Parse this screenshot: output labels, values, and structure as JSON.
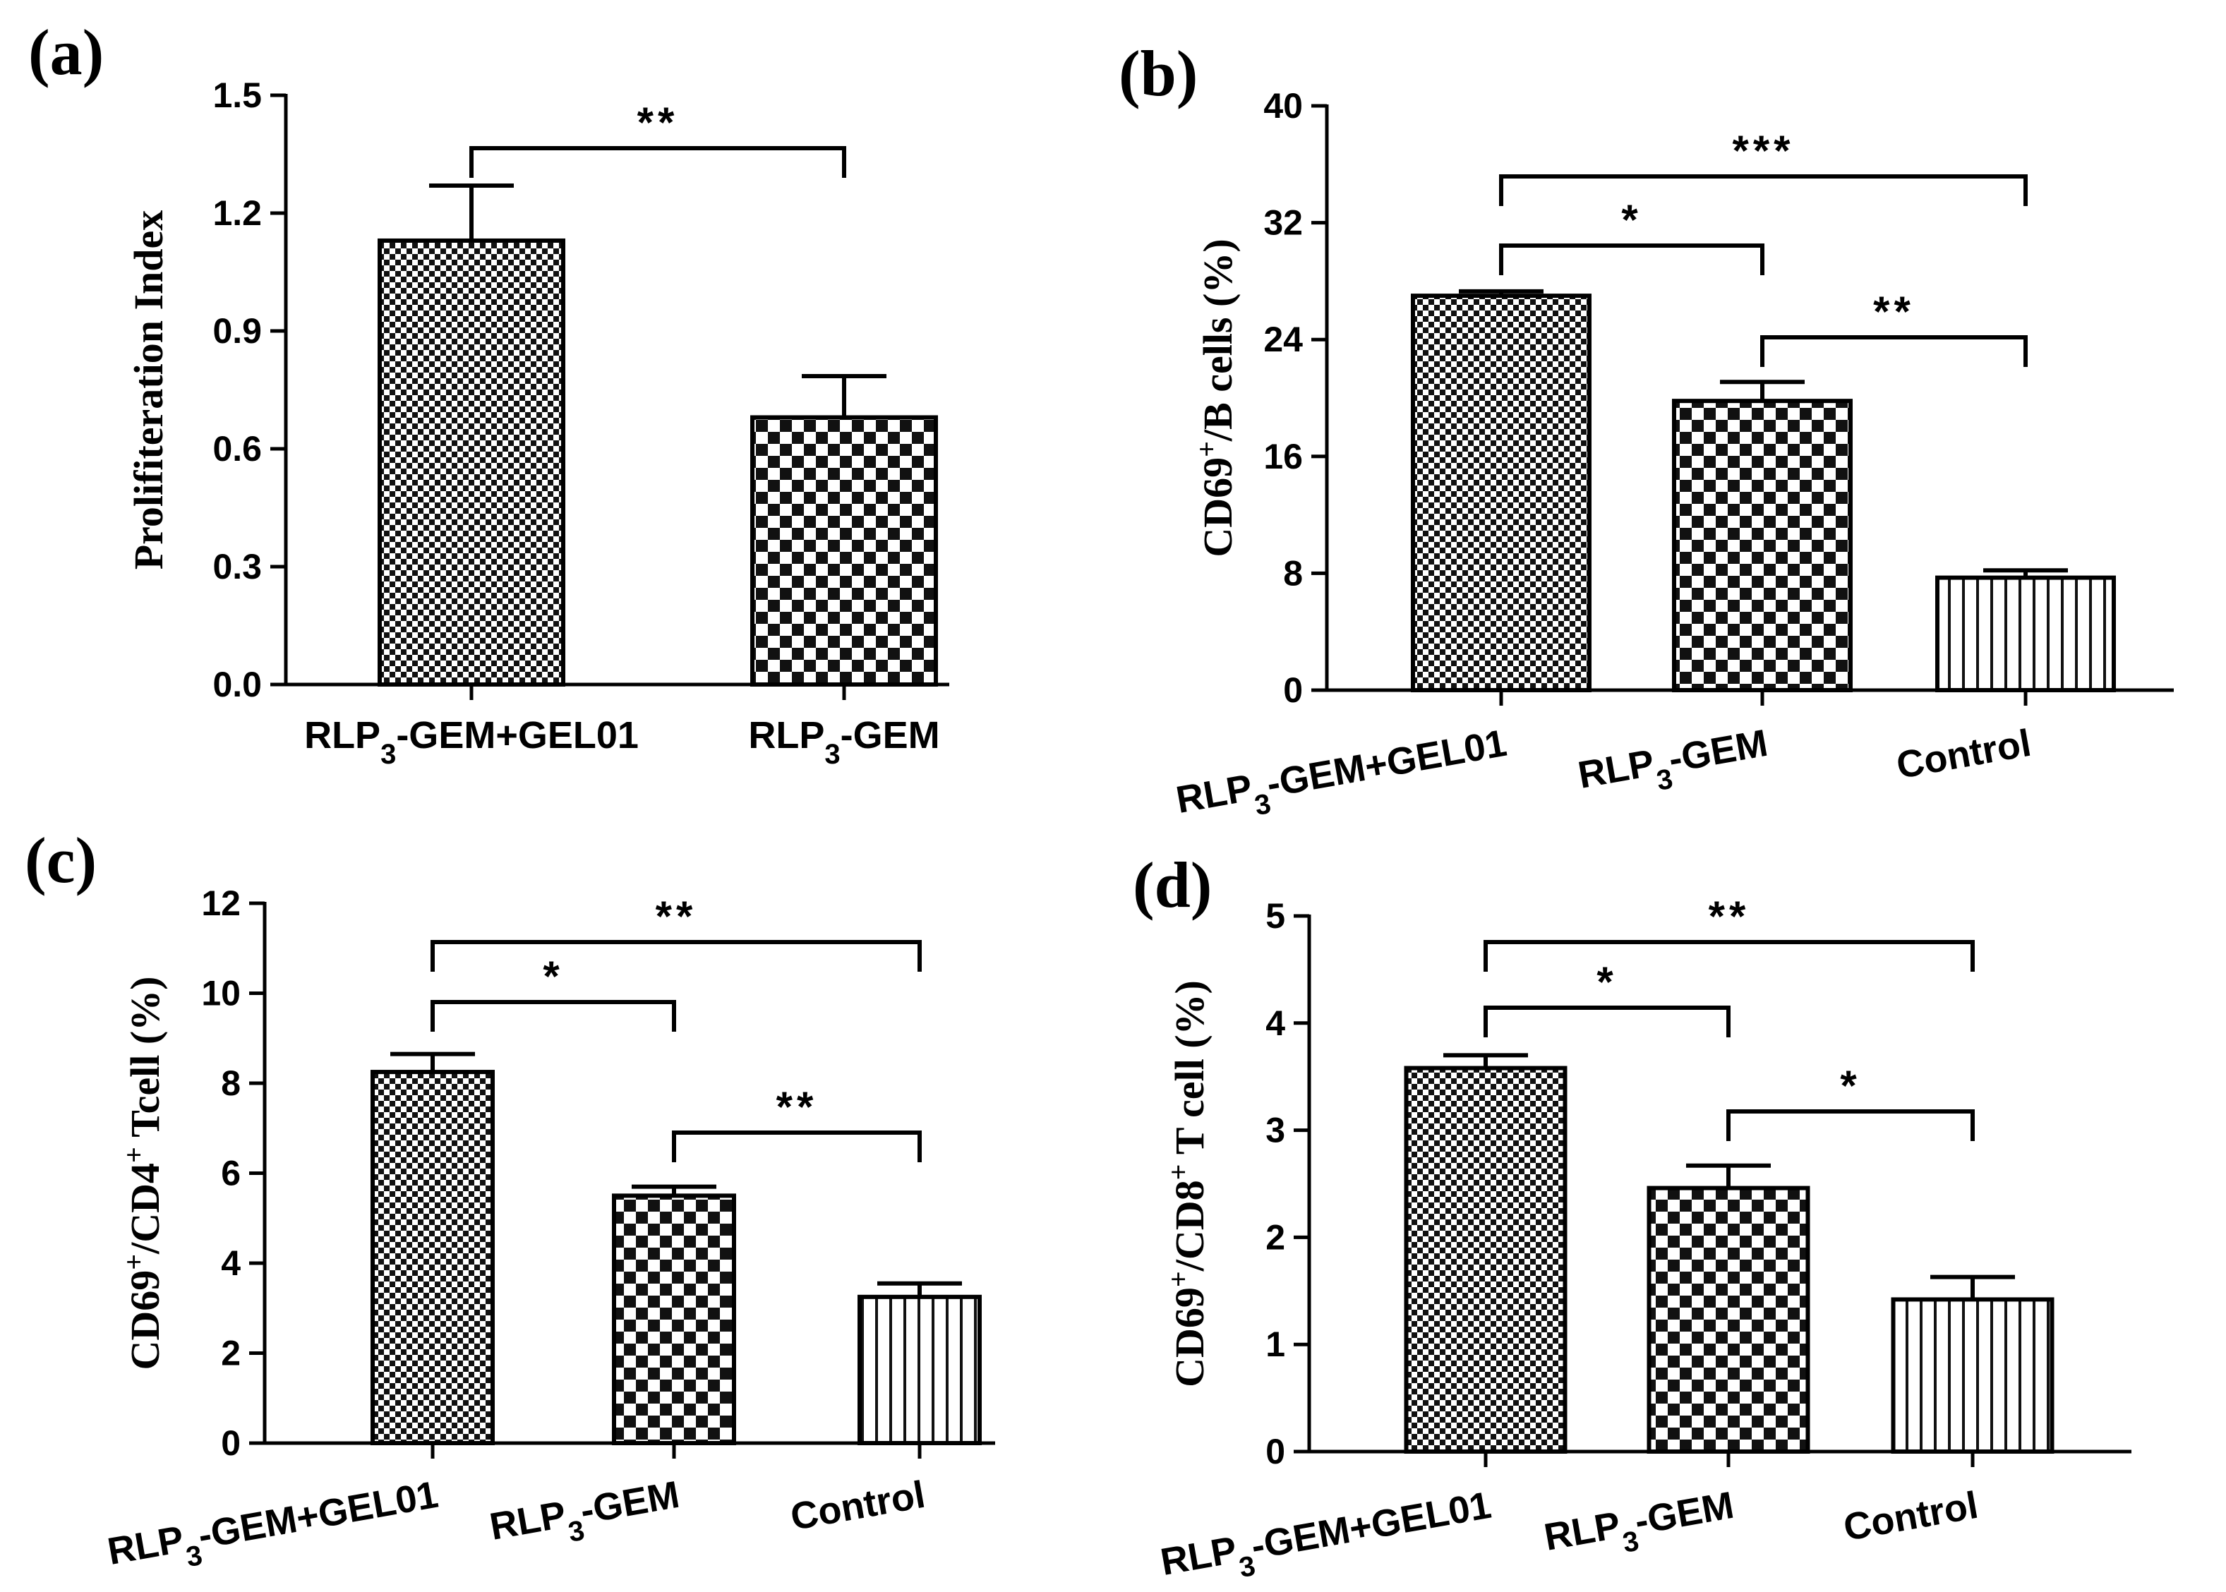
{
  "chart_data": [
    {
      "panel": "(a)",
      "type": "bar",
      "categories": [
        "RLP3-GEM+GEL01",
        "RLP3-GEM"
      ],
      "category_labels": [
        {
          "main": "RLP",
          "sub": "3",
          "rest": "-GEM+GEL01"
        },
        {
          "main": "RLP",
          "sub": "3",
          "rest": "-GEM"
        }
      ],
      "values": [
        1.13,
        0.68
      ],
      "errors": [
        0.14,
        0.105
      ],
      "patterns": [
        "fine-check",
        "coarse-check"
      ],
      "ylabel": "Prolifiteration Index",
      "ylim": [
        0,
        1.5
      ],
      "yticks": [
        "0.0",
        "0.3",
        "0.6",
        "0.9",
        "1.2",
        "1.5"
      ],
      "significance": [
        {
          "from": 0,
          "to": 1,
          "label": "**"
        }
      ]
    },
    {
      "panel": "(b)",
      "type": "bar",
      "categories": [
        "RLP3-GEM+GEL01",
        "RLP3-GEM",
        "Control"
      ],
      "category_labels": [
        {
          "main": "RLP",
          "sub": "3",
          "rest": "-GEM+GEL01"
        },
        {
          "main": "RLP",
          "sub": "3",
          "rest": "-GEM"
        },
        {
          "main": "Control",
          "sub": "",
          "rest": ""
        }
      ],
      "values": [
        27,
        19.8,
        7.7
      ],
      "errors": [
        0.3,
        1.3,
        0.5
      ],
      "patterns": [
        "fine-check",
        "coarse-check",
        "vertical"
      ],
      "ylabel": {
        "pre": "CD69",
        "sup": "+",
        "post": "/B cells (%)"
      },
      "ylim": [
        0,
        40
      ],
      "yticks": [
        "0",
        "8",
        "16",
        "24",
        "32",
        "40"
      ],
      "significance": [
        {
          "from": 0,
          "to": 2,
          "label": "***"
        },
        {
          "from": 0,
          "to": 1,
          "label": "*"
        },
        {
          "from": 1,
          "to": 2,
          "label": "**"
        }
      ]
    },
    {
      "panel": "(c)",
      "type": "bar",
      "categories": [
        "RLP3-GEM+GEL01",
        "RLP3-GEM",
        "Control"
      ],
      "category_labels": [
        {
          "main": "RLP",
          "sub": "3",
          "rest": "-GEM+GEL01"
        },
        {
          "main": "RLP",
          "sub": "3",
          "rest": "-GEM"
        },
        {
          "main": "Control",
          "sub": "",
          "rest": ""
        }
      ],
      "values": [
        8.25,
        5.5,
        3.25
      ],
      "errors": [
        0.4,
        0.2,
        0.3
      ],
      "patterns": [
        "fine-check",
        "coarse-check",
        "vertical"
      ],
      "ylabel": {
        "pre": "CD69",
        "sup": "+",
        "mid": "/CD4",
        "sup2": "+",
        "post": " Tcell (%)"
      },
      "ylim": [
        0,
        12
      ],
      "yticks": [
        "0",
        "2",
        "4",
        "6",
        "8",
        "10",
        "12"
      ],
      "significance": [
        {
          "from": 0,
          "to": 2,
          "label": "**"
        },
        {
          "from": 0,
          "to": 1,
          "label": "*"
        },
        {
          "from": 1,
          "to": 2,
          "label": "**"
        }
      ]
    },
    {
      "panel": "(d)",
      "type": "bar",
      "categories": [
        "RLP3-GEM+GEL01",
        "RLP3-GEM",
        "Control"
      ],
      "category_labels": [
        {
          "main": "RLP",
          "sub": "3",
          "rest": "-GEM+GEL01"
        },
        {
          "main": "RLP",
          "sub": "3",
          "rest": "-GEM"
        },
        {
          "main": "Control",
          "sub": "",
          "rest": ""
        }
      ],
      "values": [
        3.58,
        2.46,
        1.42
      ],
      "errors": [
        0.12,
        0.21,
        0.21
      ],
      "patterns": [
        "fine-check",
        "coarse-check",
        "vertical"
      ],
      "ylabel": {
        "pre": "CD69",
        "sup": "+",
        "mid": "/CD8",
        "sup2": "+",
        "post": " T cell (%)"
      },
      "ylim": [
        0,
        5
      ],
      "yticks": [
        "0",
        "1",
        "2",
        "3",
        "4",
        "5"
      ],
      "significance": [
        {
          "from": 0,
          "to": 2,
          "label": "**"
        },
        {
          "from": 0,
          "to": 1,
          "label": "*"
        },
        {
          "from": 1,
          "to": 2,
          "label": "*"
        }
      ]
    }
  ]
}
